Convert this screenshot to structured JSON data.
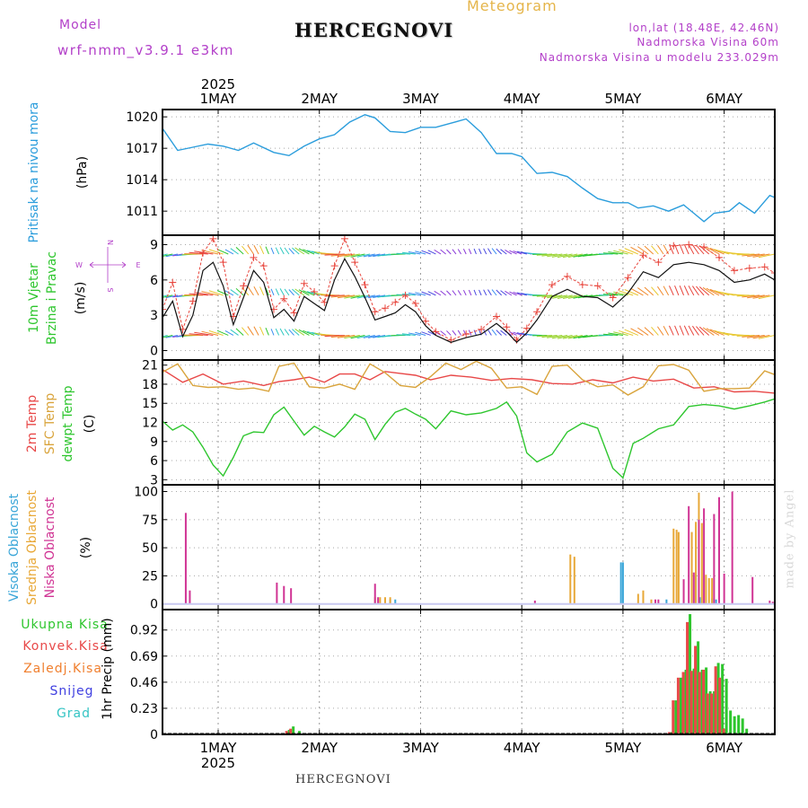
{
  "header": {
    "meteogram_label": "Meteogram",
    "station_title": "HERCEGNOVI",
    "model_label": "Model",
    "model_name": "wrf-nmm_v3.9.1 e3km",
    "lonlat": "lon,lat (18.48E, 42.46N)",
    "altitude": "Nadmorska Visina 60m",
    "model_altitude": "Nadmorska Visina u modelu 233.029m",
    "footer_station": "HERCEGNOVI",
    "credit": "made by Angel",
    "colors": {
      "meteogram": "#e5b54a",
      "model": "#b340c9",
      "title": "#111111"
    }
  },
  "time_axis": {
    "year": "2025",
    "days": [
      "1MAY",
      "2MAY",
      "3MAY",
      "4MAY",
      "5MAY",
      "6MAY"
    ],
    "start_day": 0.45,
    "end_day": 6.5
  },
  "chart_data": [
    {
      "type": "line",
      "id": "pressure",
      "title": "Pritisak na nivou mora",
      "ylabel": "(hPa)",
      "yticks": [
        1011,
        1014,
        1017,
        1020
      ],
      "ylim": [
        1008.7,
        1020.7
      ],
      "series": [
        {
          "name": "Pritisak na nivou mora",
          "color": "#2b9ddc",
          "x": [
            0.45,
            0.6,
            0.75,
            0.9,
            1.05,
            1.2,
            1.35,
            1.55,
            1.7,
            1.85,
            2.0,
            2.15,
            2.3,
            2.45,
            2.55,
            2.7,
            2.85,
            3.0,
            3.15,
            3.3,
            3.45,
            3.6,
            3.75,
            3.9,
            4.0,
            4.15,
            4.3,
            4.45,
            4.6,
            4.75,
            4.9,
            5.05,
            5.15,
            5.3,
            5.45,
            5.6,
            5.7,
            5.8,
            5.9,
            6.05,
            6.15,
            6.3,
            6.45,
            6.5
          ],
          "y": [
            1018.9,
            1016.8,
            1017.1,
            1017.4,
            1017.2,
            1016.8,
            1017.5,
            1016.6,
            1016.3,
            1017.2,
            1017.9,
            1018.3,
            1019.5,
            1020.2,
            1019.9,
            1018.6,
            1018.5,
            1019.0,
            1019.0,
            1019.4,
            1019.8,
            1018.5,
            1016.5,
            1016.5,
            1016.2,
            1014.6,
            1014.7,
            1014.3,
            1013.2,
            1012.2,
            1011.8,
            1011.8,
            1011.3,
            1011.5,
            1011.0,
            1011.6,
            1010.8,
            1010.0,
            1010.8,
            1011.0,
            1011.8,
            1010.8,
            1012.5,
            1012.3
          ]
        }
      ]
    },
    {
      "type": "line",
      "id": "wind",
      "title": "10m Vjetar",
      "subtitle": "Brzina i Pravac",
      "ylabel": "(m/s)",
      "compass": [
        "N",
        "W",
        "E",
        "S"
      ],
      "yticks": [
        0,
        3,
        6,
        9
      ],
      "ylim": [
        -0.8,
        9.8
      ],
      "series": [
        {
          "name": "Brzina",
          "color": "#111111",
          "x": [
            0.45,
            0.55,
            0.65,
            0.75,
            0.85,
            0.95,
            1.05,
            1.15,
            1.25,
            1.35,
            1.45,
            1.55,
            1.65,
            1.75,
            1.85,
            1.95,
            2.05,
            2.15,
            2.25,
            2.35,
            2.45,
            2.55,
            2.65,
            2.75,
            2.85,
            2.95,
            3.05,
            3.15,
            3.3,
            3.45,
            3.6,
            3.75,
            3.85,
            3.95,
            4.05,
            4.15,
            4.3,
            4.45,
            4.6,
            4.75,
            4.9,
            5.05,
            5.2,
            5.35,
            5.5,
            5.65,
            5.8,
            5.95,
            6.1,
            6.25,
            6.4,
            6.5
          ],
          "y": [
            2.8,
            4.2,
            1.2,
            3.0,
            6.8,
            7.5,
            5.5,
            2.2,
            4.5,
            6.8,
            5.8,
            2.8,
            3.5,
            2.5,
            4.6,
            4.0,
            3.4,
            6.0,
            7.8,
            6.3,
            4.5,
            2.6,
            2.9,
            3.2,
            3.9,
            3.3,
            2.1,
            1.3,
            0.7,
            1.1,
            1.4,
            2.3,
            1.6,
            0.7,
            1.5,
            2.6,
            4.6,
            5.2,
            4.6,
            4.5,
            3.7,
            4.9,
            6.7,
            6.2,
            7.3,
            7.5,
            7.3,
            6.8,
            5.8,
            6.0,
            6.5,
            6.0
          ]
        },
        {
          "name": "Udari",
          "color": "#e8453c",
          "x": [
            0.45,
            0.55,
            0.65,
            0.75,
            0.85,
            0.95,
            1.05,
            1.15,
            1.25,
            1.35,
            1.45,
            1.55,
            1.65,
            1.75,
            1.85,
            1.95,
            2.05,
            2.15,
            2.25,
            2.35,
            2.45,
            2.55,
            2.65,
            2.75,
            2.85,
            2.95,
            3.05,
            3.15,
            3.3,
            3.45,
            3.6,
            3.75,
            3.85,
            3.95,
            4.05,
            4.15,
            4.3,
            4.45,
            4.6,
            4.75,
            4.9,
            5.05,
            5.2,
            5.35,
            5.5,
            5.65,
            5.8,
            5.95,
            6.1,
            6.25,
            6.4,
            6.5
          ],
          "y": [
            3.5,
            5.8,
            1.8,
            4.2,
            8.3,
            9.5,
            7.5,
            2.9,
            5.5,
            7.9,
            7.2,
            3.5,
            4.4,
            3.2,
            5.7,
            5.0,
            4.1,
            7.2,
            9.5,
            7.5,
            5.6,
            3.3,
            3.6,
            4.1,
            4.7,
            4.0,
            2.5,
            1.6,
            0.9,
            1.4,
            1.8,
            2.9,
            2.0,
            0.9,
            1.9,
            3.3,
            5.6,
            6.3,
            5.6,
            5.5,
            4.5,
            6.2,
            8.1,
            7.5,
            8.9,
            9.0,
            8.8,
            7.9,
            6.8,
            7.0,
            7.1,
            6.6
          ]
        }
      ]
    },
    {
      "type": "line",
      "id": "temperature",
      "title": "2m Temp",
      "subtitle": "SFC Temp",
      "subtitle2": "dewpt Temp",
      "ylabel": "(C)",
      "yticks": [
        3,
        6,
        9,
        12,
        15,
        18,
        21
      ],
      "ylim": [
        2.2,
        21.8
      ],
      "series": [
        {
          "name": "2m Temp",
          "color": "#e84848",
          "x": [
            0.45,
            0.65,
            0.85,
            1.05,
            1.25,
            1.45,
            1.6,
            1.75,
            1.9,
            2.05,
            2.2,
            2.35,
            2.5,
            2.65,
            2.8,
            2.95,
            3.1,
            3.3,
            3.5,
            3.7,
            3.9,
            4.1,
            4.3,
            4.5,
            4.7,
            4.9,
            5.1,
            5.3,
            5.5,
            5.7,
            5.9,
            6.1,
            6.3,
            6.5
          ],
          "y": [
            20.3,
            18.3,
            19.6,
            18.0,
            18.5,
            17.8,
            18.4,
            18.7,
            19.1,
            18.3,
            19.6,
            19.6,
            18.7,
            20.0,
            19.7,
            19.4,
            18.7,
            19.4,
            19.1,
            18.6,
            18.9,
            18.7,
            18.1,
            18.0,
            18.7,
            18.2,
            19.1,
            18.5,
            18.8,
            17.4,
            17.6,
            16.8,
            16.9,
            16.6
          ]
        },
        {
          "name": "SFC Temp",
          "color": "#d9a43c",
          "x": [
            0.45,
            0.6,
            0.75,
            0.9,
            1.05,
            1.2,
            1.35,
            1.5,
            1.6,
            1.75,
            1.9,
            2.05,
            2.2,
            2.35,
            2.5,
            2.65,
            2.8,
            2.95,
            3.1,
            3.25,
            3.4,
            3.55,
            3.7,
            3.85,
            4.0,
            4.15,
            4.3,
            4.45,
            4.6,
            4.75,
            4.9,
            5.05,
            5.2,
            5.35,
            5.5,
            5.65,
            5.8,
            5.95,
            6.1,
            6.25,
            6.4,
            6.5
          ],
          "y": [
            19.9,
            21.2,
            17.8,
            17.5,
            17.6,
            17.2,
            17.4,
            16.9,
            20.8,
            21.3,
            17.6,
            17.4,
            18.0,
            17.2,
            21.2,
            19.8,
            17.8,
            17.5,
            19.2,
            21.3,
            20.3,
            21.6,
            20.5,
            17.4,
            17.6,
            16.4,
            20.8,
            21.0,
            18.7,
            17.6,
            17.9,
            16.3,
            17.6,
            20.9,
            21.1,
            20.2,
            16.9,
            17.3,
            17.3,
            17.4,
            20.1,
            19.5
          ]
        },
        {
          "name": "dewpt Temp",
          "color": "#2ec62e",
          "x": [
            0.45,
            0.55,
            0.65,
            0.75,
            0.85,
            0.95,
            1.05,
            1.15,
            1.25,
            1.35,
            1.45,
            1.55,
            1.65,
            1.75,
            1.85,
            1.95,
            2.05,
            2.15,
            2.25,
            2.35,
            2.45,
            2.55,
            2.65,
            2.75,
            2.85,
            2.95,
            3.05,
            3.15,
            3.3,
            3.45,
            3.6,
            3.75,
            3.85,
            3.95,
            4.05,
            4.15,
            4.3,
            4.45,
            4.6,
            4.75,
            4.9,
            5.0,
            5.1,
            5.2,
            5.35,
            5.5,
            5.65,
            5.8,
            5.95,
            6.1,
            6.25,
            6.4,
            6.5
          ],
          "y": [
            12.2,
            10.8,
            11.6,
            10.5,
            8.1,
            5.3,
            3.6,
            6.5,
            9.9,
            10.5,
            10.4,
            13.2,
            14.4,
            12.2,
            10.0,
            11.4,
            10.5,
            9.7,
            11.3,
            13.3,
            12.5,
            9.3,
            11.7,
            13.6,
            14.2,
            13.3,
            12.5,
            11.0,
            13.8,
            13.2,
            13.5,
            14.2,
            15.2,
            13.0,
            7.2,
            5.8,
            7.0,
            10.5,
            11.9,
            11.1,
            4.8,
            3.3,
            8.7,
            9.5,
            11.0,
            11.6,
            14.5,
            14.8,
            14.6,
            14.1,
            14.6,
            15.2,
            15.7
          ]
        }
      ]
    },
    {
      "type": "bar",
      "id": "clouds",
      "title": "Visoka Oblacnost",
      "subtitle": "Srednja Oblacnost",
      "subtitle2": "Niska Oblacnost",
      "ylabel": "(%)",
      "yticks": [
        0,
        25,
        50,
        75,
        100
      ],
      "ylim": [
        -5,
        106
      ],
      "series": [
        {
          "name": "Visoka Oblacnost",
          "color": "#3aa6d8",
          "x": [
            2.65,
            2.7,
            2.75,
            4.98,
            5.0,
            5.43,
            5.72,
            5.76,
            5.88,
            5.92
          ],
          "y": [
            4,
            4,
            4,
            37,
            37,
            4,
            26,
            6,
            5,
            4
          ]
        },
        {
          "name": "Srednja Oblacnost",
          "color": "#e8a838",
          "x": [
            2.55,
            2.6,
            2.65,
            2.7,
            4.48,
            4.52,
            5.15,
            5.2,
            5.28,
            5.5,
            5.53,
            5.55,
            5.68,
            5.72,
            5.75,
            5.78,
            5.82,
            5.85,
            5.88,
            5.95
          ],
          "y": [
            6,
            6,
            6,
            6,
            44,
            42,
            9,
            12,
            4,
            67,
            66,
            64,
            64,
            73,
            99,
            72,
            26,
            23,
            23,
            21
          ]
        },
        {
          "name": "Niska Oblacnost",
          "color": "#d03494",
          "x": [
            0.68,
            0.72,
            1.58,
            1.65,
            1.72,
            2.55,
            2.58,
            4.13,
            5.32,
            5.35,
            5.6,
            5.65,
            5.7,
            5.75,
            5.8,
            5.9,
            5.95,
            6.0,
            6.08,
            6.28,
            6.45,
            6.48
          ],
          "y": [
            81,
            12,
            19,
            16,
            14,
            18,
            6,
            3,
            4,
            4,
            22,
            87,
            28,
            75,
            85,
            80,
            95,
            27,
            100,
            24,
            3,
            2
          ]
        }
      ]
    },
    {
      "type": "bar",
      "id": "precip",
      "title": "1hr Precip (mm)",
      "ylabel": "(mm)",
      "legend": [
        "Ukupna Kisa",
        "Konvek.Kisa",
        "Zaledj.Kisa",
        "Snijeg",
        "Grad"
      ],
      "legend_colors": [
        "#2ec62e",
        "#e84848",
        "#f07f2e",
        "#4040e0",
        "#34c4c4"
      ],
      "yticks": [
        0,
        0.23,
        0.46,
        0.69,
        0.92
      ],
      "ylim": [
        0,
        1.1
      ],
      "series": [
        {
          "name": "Ukupna Kisa",
          "color": "#2ec62e",
          "x": [
            1.68,
            1.72,
            1.78,
            2.82,
            4.95,
            5.22,
            5.46,
            5.5,
            5.55,
            5.6,
            5.64,
            5.68,
            5.72,
            5.76,
            5.8,
            5.84,
            5.88,
            5.92,
            5.96,
            6.0,
            6.04,
            6.08,
            6.12,
            6.16,
            6.2
          ],
          "y": [
            0.04,
            0.07,
            0.03,
            0.01,
            0.01,
            0.01,
            0.02,
            0.3,
            0.5,
            0.57,
            1.06,
            0.58,
            0.82,
            0.57,
            0.59,
            0.38,
            0.38,
            0.63,
            0.62,
            0.49,
            0.21,
            0.16,
            0.17,
            0.14,
            0.05
          ]
        },
        {
          "name": "Konvek.Kisa",
          "color": "#e84848",
          "x": [
            1.68,
            1.72,
            2.82,
            4.95,
            5.22,
            5.46,
            5.5,
            5.55,
            5.6,
            5.64,
            5.68,
            5.72,
            5.76,
            5.8,
            5.84,
            5.88,
            5.92,
            5.96,
            6.0
          ],
          "y": [
            0.03,
            0.05,
            0.01,
            0.01,
            0.01,
            0.02,
            0.3,
            0.5,
            0.55,
            0.99,
            0.56,
            0.78,
            0.55,
            0.57,
            0.36,
            0.36,
            0.6,
            0.5,
            0.05
          ]
        }
      ]
    }
  ]
}
